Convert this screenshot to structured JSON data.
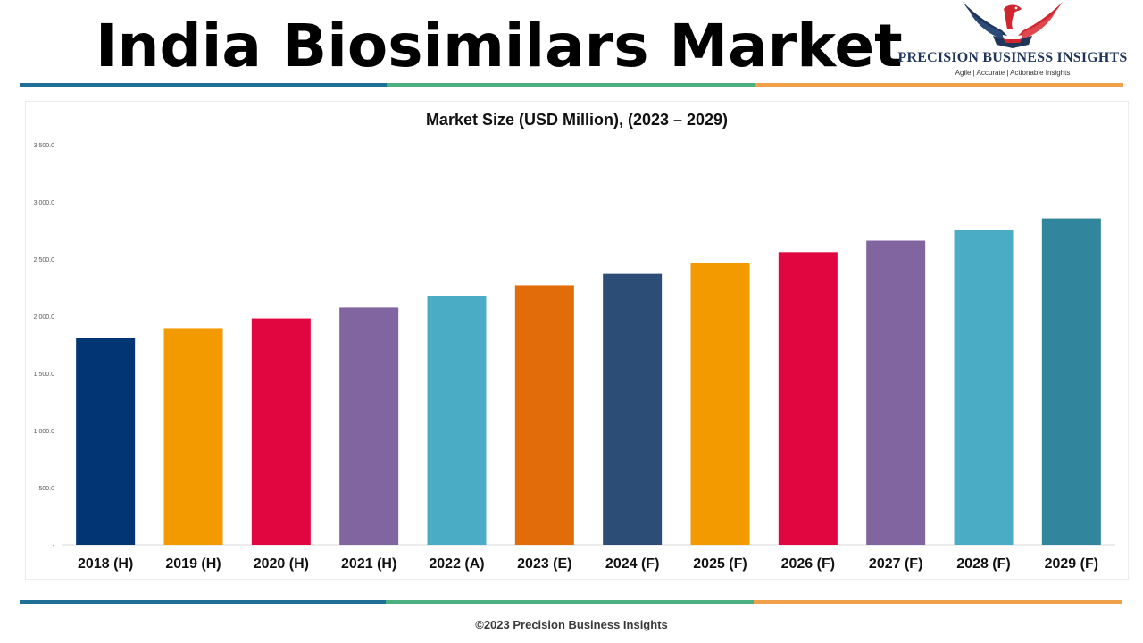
{
  "header": {
    "title": "India Biosimilars Market"
  },
  "logo": {
    "name": "PRECISION BUSINESS INSIGHTS",
    "tagline": "Agile | Accurate | Actionable Insights",
    "icon": "eagle-handshake-icon"
  },
  "stripes": {
    "colors": [
      "#1f6f96",
      "#4caf82",
      "#f0a04b"
    ]
  },
  "chart_data": {
    "type": "bar",
    "title": "Market Size (USD Million), (2023 – 2029)",
    "xlabel": "",
    "ylabel": "",
    "categories": [
      "2018 (H)",
      "2019 (H)",
      "2020 (H)",
      "2021 (H)",
      "2022 (A)",
      "2023 (E)",
      "2024 (F)",
      "2025 (F)",
      "2026 (F)",
      "2027 (F)",
      "2028 (F)",
      "2029 (F)"
    ],
    "values": [
      1810,
      1895,
      1980,
      2075,
      2175,
      2270,
      2370,
      2465,
      2560,
      2660,
      2755,
      2855
    ],
    "colors": [
      "#023573",
      "#f29a00",
      "#e10540",
      "#8065a0",
      "#4bacc6",
      "#e36c0a",
      "#2c4d75",
      "#f29a00",
      "#e10540",
      "#8065a0",
      "#4bacc6",
      "#31859c"
    ],
    "ylim": [
      0,
      3500
    ],
    "yticks": [
      0,
      500,
      1000,
      1500,
      2000,
      2500,
      3000,
      3500
    ],
    "ytick_labels": [
      "-",
      "500.0",
      "1,000.0",
      "1,500.0",
      "2,000.0",
      "2,500.0",
      "3,000.0",
      "3,500.0"
    ],
    "grid": false,
    "legend": "none"
  },
  "footer": {
    "copyright": "©2023 Precision Business Insights"
  }
}
